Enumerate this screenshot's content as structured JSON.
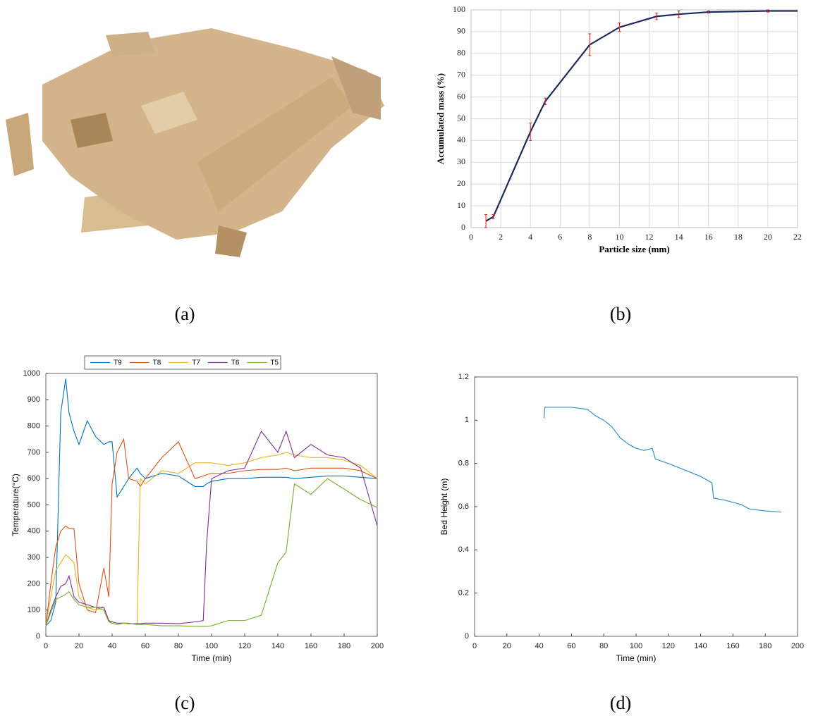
{
  "panel_labels": [
    "(a)",
    "(b)",
    "(c)",
    "(d)"
  ],
  "chart_data": [
    {
      "type": "line",
      "xlabel": "Particle size (mm)",
      "ylabel": "Accumulated mass (%)",
      "x": [
        1,
        1.5,
        4,
        5,
        8,
        10,
        12.5,
        14,
        16,
        20,
        22
      ],
      "series": [
        {
          "name": "Accumulated mass",
          "color": "#1f2a5c",
          "values": [
            3,
            5,
            44,
            58,
            84,
            92,
            97,
            98,
            99,
            99.5,
            99.5
          ],
          "errors": [
            3,
            1,
            4,
            1.5,
            5,
            2,
            1.5,
            1.5,
            0.5,
            0.5,
            null
          ],
          "error_color": "#d62020"
        }
      ],
      "xlim": [
        0,
        22
      ],
      "xticks": [
        0,
        2,
        4,
        6,
        8,
        10,
        12,
        14,
        16,
        18,
        20,
        22
      ],
      "ylim": [
        0,
        100
      ],
      "yticks": [
        0,
        10,
        20,
        30,
        40,
        50,
        60,
        70,
        80,
        90,
        100
      ],
      "grid": true,
      "legend": false
    },
    {
      "type": "line",
      "xlabel": "Time (min)",
      "ylabel": "Temperature(°C)",
      "x": [
        0,
        3,
        6,
        9,
        12,
        14,
        17,
        20,
        25,
        30,
        35,
        38,
        40,
        43,
        47,
        50,
        55,
        57,
        60,
        70,
        80,
        90,
        95,
        97,
        100,
        110,
        120,
        130,
        140,
        145,
        150,
        160,
        170,
        180,
        190,
        200
      ],
      "series": [
        {
          "name": "T9",
          "color": "#0072bd",
          "values": [
            40,
            60,
            130,
            850,
            980,
            850,
            780,
            730,
            820,
            760,
            730,
            740,
            740,
            530,
            570,
            600,
            640,
            620,
            600,
            620,
            610,
            570,
            570,
            580,
            590,
            600,
            600,
            605,
            605,
            605,
            600,
            605,
            610,
            610,
            605,
            600
          ]
        },
        {
          "name": "T8",
          "color": "#d95319",
          "values": [
            40,
            200,
            340,
            400,
            420,
            410,
            410,
            200,
            100,
            90,
            260,
            150,
            580,
            700,
            750,
            600,
            590,
            570,
            600,
            680,
            740,
            600,
            610,
            615,
            620,
            620,
            630,
            635,
            635,
            640,
            630,
            640,
            640,
            640,
            630,
            600
          ]
        },
        {
          "name": "T7",
          "color": "#edb120",
          "values": [
            40,
            150,
            250,
            280,
            310,
            300,
            280,
            150,
            110,
            100,
            110,
            60,
            50,
            45,
            50,
            50,
            45,
            600,
            580,
            630,
            620,
            660,
            660,
            660,
            660,
            650,
            660,
            680,
            690,
            700,
            690,
            680,
            680,
            670,
            650,
            600
          ]
        },
        {
          "name": "T6",
          "color": "#7e2f8e",
          "values": [
            40,
            100,
            150,
            190,
            200,
            230,
            150,
            130,
            120,
            110,
            110,
            60,
            55,
            50,
            50,
            48,
            48,
            48,
            50,
            50,
            48,
            55,
            60,
            350,
            600,
            630,
            640,
            780,
            700,
            780,
            680,
            730,
            690,
            680,
            640,
            420
          ]
        },
        {
          "name": "T5",
          "color": "#77ac30",
          "values": [
            40,
            90,
            140,
            150,
            160,
            170,
            140,
            120,
            110,
            110,
            100,
            55,
            50,
            45,
            50,
            50,
            45,
            45,
            45,
            40,
            40,
            38,
            38,
            38,
            40,
            60,
            60,
            80,
            280,
            320,
            580,
            540,
            600,
            560,
            520,
            490
          ]
        }
      ],
      "xlim": [
        0,
        200
      ],
      "xticks": [
        0,
        20,
        40,
        60,
        80,
        100,
        120,
        140,
        160,
        180,
        200
      ],
      "ylim": [
        0,
        1000
      ],
      "yticks": [
        0,
        100,
        200,
        300,
        400,
        500,
        600,
        700,
        800,
        900,
        1000
      ],
      "grid": false,
      "legend": "top"
    },
    {
      "type": "line",
      "xlabel": "Time (min)",
      "ylabel": "Bed Height (m)",
      "x": [
        43,
        43.5,
        50,
        60,
        70,
        75,
        80,
        85,
        90,
        95,
        100,
        105,
        110,
        112,
        120,
        130,
        140,
        147,
        148,
        155,
        165,
        170,
        180,
        190
      ],
      "series": [
        {
          "name": "Bed height",
          "color": "#3a8fc8",
          "values": [
            1.01,
            1.06,
            1.06,
            1.06,
            1.05,
            1.02,
            1.0,
            0.97,
            0.92,
            0.89,
            0.87,
            0.86,
            0.87,
            0.82,
            0.8,
            0.77,
            0.74,
            0.71,
            0.64,
            0.63,
            0.61,
            0.59,
            0.58,
            0.575
          ]
        }
      ],
      "xlim": [
        0,
        200
      ],
      "xticks": [
        0,
        20,
        40,
        60,
        80,
        100,
        120,
        140,
        160,
        180,
        200
      ],
      "ylim": [
        0,
        1.2
      ],
      "yticks": [
        0,
        0.2,
        0.4,
        0.6,
        0.8,
        1,
        1.2
      ],
      "grid": false,
      "legend": false
    }
  ]
}
